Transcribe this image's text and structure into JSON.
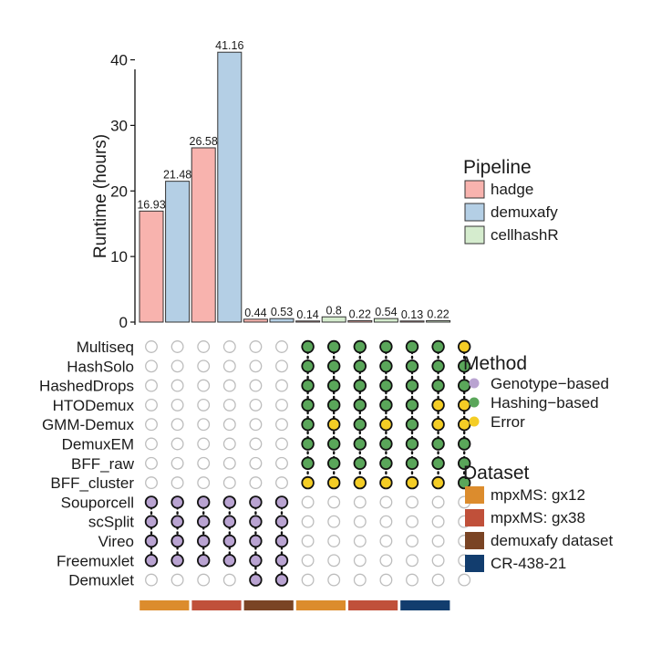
{
  "chart_data": {
    "type": "bar",
    "ylabel": "Runtime (hours)",
    "ylim": [
      0,
      43
    ],
    "yticks": [
      0,
      10,
      20,
      30,
      40
    ],
    "grid": false,
    "bars": [
      {
        "pipeline": "hadge",
        "dataset": "mpxMS: gx12",
        "value": 16.93,
        "label": "16.93"
      },
      {
        "pipeline": "demuxafy",
        "dataset": "mpxMS: gx12",
        "value": 21.48,
        "label": "21.48"
      },
      {
        "pipeline": "hadge",
        "dataset": "mpxMS: gx38",
        "value": 26.58,
        "label": "26.58"
      },
      {
        "pipeline": "demuxafy",
        "dataset": "mpxMS: gx38",
        "value": 41.16,
        "label": "41.16"
      },
      {
        "pipeline": "hadge",
        "dataset": "demuxafy dataset",
        "value": 0.44,
        "label": "0.44"
      },
      {
        "pipeline": "demuxafy",
        "dataset": "demuxafy dataset",
        "value": 0.53,
        "label": "0.53"
      },
      {
        "pipeline": "hadge",
        "dataset": "mpxMS: gx12",
        "value": 0.14,
        "label": "0.14"
      },
      {
        "pipeline": "cellhashR",
        "dataset": "mpxMS: gx12",
        "value": 0.8,
        "label": "0.8"
      },
      {
        "pipeline": "hadge",
        "dataset": "mpxMS: gx38",
        "value": 0.22,
        "label": "0.22"
      },
      {
        "pipeline": "cellhashR",
        "dataset": "mpxMS: gx38",
        "value": 0.54,
        "label": "0.54"
      },
      {
        "pipeline": "hadge",
        "dataset": "CR-438-21",
        "value": 0.13,
        "label": "0.13"
      },
      {
        "pipeline": "cellhashR",
        "dataset": "CR-438-21",
        "value": 0.22,
        "label": "0.22"
      }
    ],
    "pipeline_legend": {
      "title": "Pipeline",
      "items": [
        {
          "name": "hadge",
          "color": "#f8b3ae"
        },
        {
          "name": "demuxafy",
          "color": "#b4cfe5"
        },
        {
          "name": "cellhashR",
          "color": "#d5ecce"
        }
      ]
    },
    "method_legend": {
      "title": "Method",
      "items": [
        {
          "name": "Genotype−based",
          "key": "G",
          "color": "#b9a3d1"
        },
        {
          "name": "Hashing−based",
          "key": "H",
          "color": "#5aa65a"
        },
        {
          "name": "Error",
          "key": "E",
          "color": "#f4cd25"
        }
      ]
    },
    "dataset_legend": {
      "title": "Dataset",
      "items": [
        {
          "name": "mpxMS: gx12",
          "color": "#dc8c2d"
        },
        {
          "name": "mpxMS: gx38",
          "color": "#c0503a"
        },
        {
          "name": "demuxafy dataset",
          "color": "#7a4424"
        },
        {
          "name": "CR-438-21",
          "color": "#123d6e"
        }
      ]
    },
    "methods": [
      "Multiseq",
      "HashSolo",
      "HashedDrops",
      "HTODemux",
      "GMM-Demux",
      "DemuxEM",
      "BFF_raw",
      "BFF_cluster",
      "Souporcell",
      "scSplit",
      "Vireo",
      "Freemuxlet",
      "Demuxlet"
    ],
    "matrix": [
      "......HHHHHHE",
      "......HHHHHHH",
      "......HHHHHHH",
      "......HHHHHEE",
      "......HEHEHEE",
      "......HHHHHHH",
      "......HHHHHHH",
      "......EEEEEEH",
      "GGGGGG.......",
      "GGGGGG.......",
      "GGGGGG.......",
      "GGGGGG.......",
      "....GG......."
    ],
    "dataset_strip": [
      {
        "dataset": "mpxMS: gx12",
        "columns": 2
      },
      {
        "dataset": "mpxMS: gx38",
        "columns": 2
      },
      {
        "dataset": "demuxafy dataset",
        "columns": 2
      },
      {
        "dataset": "mpxMS: gx12",
        "columns": 2
      },
      {
        "dataset": "mpxMS: gx38",
        "columns": 2
      },
      {
        "dataset": "CR-438-21",
        "columns": 2
      }
    ]
  }
}
